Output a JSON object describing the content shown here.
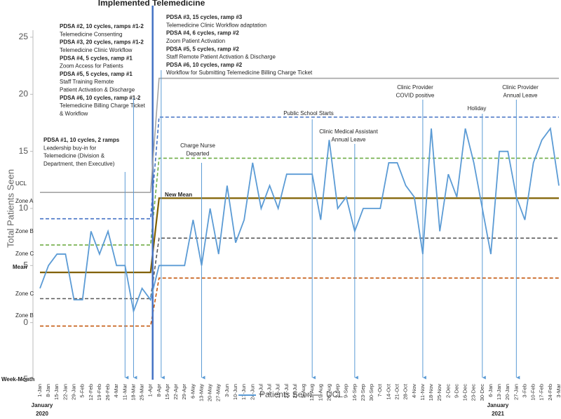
{
  "chart_data": {
    "type": "line",
    "title": "Implemented Telemedicine",
    "y_label": "Total Patients Seen",
    "x_label": "Week-Month",
    "year_labels": [
      [
        "January",
        "2020"
      ],
      [
        "January",
        "2021"
      ]
    ],
    "categories": [
      "1-Jan",
      "8-Jan",
      "15-Jan",
      "22-Jan",
      "29-Jan",
      "5-Feb",
      "12-Feb",
      "19-Feb",
      "26-Feb",
      "4-Mar",
      "11-Mar",
      "18-Mar",
      "25-Mar",
      "1-Apr",
      "8-Apr",
      "15-Apr",
      "22-Apr",
      "29-Apr",
      "6-May",
      "13-May",
      "20-May",
      "27-May",
      "3-Jun",
      "10-Jun",
      "17-Jun",
      "24-Jun",
      "1-Jul",
      "8-Jul",
      "15-Jul",
      "22-Jul",
      "29-Jul",
      "5-Aug",
      "12-Aug",
      "19-Aug",
      "26-Aug",
      "2-Sep",
      "9-Sep",
      "16-Sep",
      "23-Sep",
      "30-Sep",
      "7-Oct",
      "14-Oct",
      "21-Oct",
      "28-Oct",
      "4-Nov",
      "11-Nov",
      "18-Nov",
      "25-Nov",
      "2-Dec",
      "9-Dec",
      "16-Dec",
      "23-Dec",
      "30-Dec",
      "6-Jan",
      "13-Jan",
      "20-Jan",
      "27-Jan",
      "3-Feb",
      "10-Feb",
      "17-Feb",
      "24-Feb",
      "3-Mar"
    ],
    "series": [
      {
        "name": "Patients Seen",
        "color": "#5b9bd5",
        "values": [
          3,
          5,
          6,
          6,
          2,
          2,
          8,
          6,
          8,
          5,
          5,
          1,
          3,
          2,
          5,
          5,
          5,
          5,
          9,
          5,
          10,
          6,
          12,
          7,
          9,
          14,
          10,
          12,
          10,
          13,
          13,
          13,
          13,
          9,
          16,
          10,
          11,
          8,
          10,
          10,
          10,
          14,
          14,
          12,
          11,
          6,
          17,
          8,
          13,
          11,
          17,
          14,
          10,
          6,
          15,
          15,
          11,
          9,
          14,
          16,
          17,
          12
        ]
      },
      {
        "name": "UCL",
        "color": "#a5a5a5",
        "values": [
          11.4,
          11.4,
          11.4,
          11.4,
          11.4,
          11.4,
          11.4,
          11.4,
          11.4,
          11.4,
          11.4,
          11.4,
          11.4,
          11.4,
          21.4,
          21.4,
          21.4,
          21.4,
          21.4,
          21.4,
          21.4,
          21.4,
          21.4,
          21.4,
          21.4,
          21.4,
          21.4,
          21.4,
          21.4,
          21.4,
          21.4,
          21.4,
          21.4,
          21.4,
          21.4,
          21.4,
          21.4,
          21.4,
          21.4,
          21.4,
          21.4,
          21.4,
          21.4,
          21.4,
          21.4,
          21.4,
          21.4,
          21.4,
          21.4,
          21.4,
          21.4,
          21.4,
          21.4,
          21.4,
          21.4,
          21.4,
          21.4,
          21.4,
          21.4,
          21.4,
          21.4,
          21.4
        ]
      }
    ],
    "control_lines": [
      {
        "color": "#4472c4",
        "dashed": true,
        "values": [
          9.1,
          9.1,
          9.1,
          9.1,
          9.1,
          9.1,
          9.1,
          9.1,
          9.1,
          9.1,
          9.1,
          9.1,
          9.1,
          9.1,
          18,
          18,
          18,
          18,
          18,
          18,
          18,
          18,
          18,
          18,
          18,
          18,
          18,
          18,
          18,
          18,
          18,
          18,
          18,
          18,
          18,
          18,
          18,
          18,
          18,
          18,
          18,
          18,
          18,
          18,
          18,
          18,
          18,
          18,
          18,
          18,
          18,
          18,
          18,
          18,
          18,
          18,
          18,
          18,
          18,
          18,
          18,
          18
        ]
      },
      {
        "color": "#70ad47",
        "dashed": true,
        "values": [
          6.8,
          6.8,
          6.8,
          6.8,
          6.8,
          6.8,
          6.8,
          6.8,
          6.8,
          6.8,
          6.8,
          6.8,
          6.8,
          6.8,
          14.4,
          14.4,
          14.4,
          14.4,
          14.4,
          14.4,
          14.4,
          14.4,
          14.4,
          14.4,
          14.4,
          14.4,
          14.4,
          14.4,
          14.4,
          14.4,
          14.4,
          14.4,
          14.4,
          14.4,
          14.4,
          14.4,
          14.4,
          14.4,
          14.4,
          14.4,
          14.4,
          14.4,
          14.4,
          14.4,
          14.4,
          14.4,
          14.4,
          14.4,
          14.4,
          14.4,
          14.4,
          14.4,
          14.4,
          14.4,
          14.4,
          14.4,
          14.4,
          14.4,
          14.4,
          14.4,
          14.4,
          14.4
        ]
      },
      {
        "color": "#806000",
        "dashed": false,
        "values": [
          4.4,
          4.4,
          4.4,
          4.4,
          4.4,
          4.4,
          4.4,
          4.4,
          4.4,
          4.4,
          4.4,
          4.4,
          4.4,
          4.4,
          10.9,
          10.9,
          10.9,
          10.9,
          10.9,
          10.9,
          10.9,
          10.9,
          10.9,
          10.9,
          10.9,
          10.9,
          10.9,
          10.9,
          10.9,
          10.9,
          10.9,
          10.9,
          10.9,
          10.9,
          10.9,
          10.9,
          10.9,
          10.9,
          10.9,
          10.9,
          10.9,
          10.9,
          10.9,
          10.9,
          10.9,
          10.9,
          10.9,
          10.9,
          10.9,
          10.9,
          10.9,
          10.9,
          10.9,
          10.9,
          10.9,
          10.9,
          10.9,
          10.9,
          10.9,
          10.9,
          10.9,
          10.9
        ]
      },
      {
        "color": "#595959",
        "dashed": true,
        "values": [
          2.1,
          2.1,
          2.1,
          2.1,
          2.1,
          2.1,
          2.1,
          2.1,
          2.1,
          2.1,
          2.1,
          2.1,
          2.1,
          2.1,
          7.4,
          7.4,
          7.4,
          7.4,
          7.4,
          7.4,
          7.4,
          7.4,
          7.4,
          7.4,
          7.4,
          7.4,
          7.4,
          7.4,
          7.4,
          7.4,
          7.4,
          7.4,
          7.4,
          7.4,
          7.4,
          7.4,
          7.4,
          7.4,
          7.4,
          7.4,
          7.4,
          7.4,
          7.4,
          7.4,
          7.4,
          7.4,
          7.4,
          7.4,
          7.4,
          7.4,
          7.4,
          7.4,
          7.4,
          7.4,
          7.4,
          7.4,
          7.4,
          7.4,
          7.4,
          7.4,
          7.4,
          7.4
        ]
      },
      {
        "color": "#c55a11",
        "dashed": true,
        "values": [
          -0.3,
          -0.3,
          -0.3,
          -0.3,
          -0.3,
          -0.3,
          -0.3,
          -0.3,
          -0.3,
          -0.3,
          -0.3,
          -0.3,
          -0.3,
          -0.3,
          3.9,
          3.9,
          3.9,
          3.9,
          3.9,
          3.9,
          3.9,
          3.9,
          3.9,
          3.9,
          3.9,
          3.9,
          3.9,
          3.9,
          3.9,
          3.9,
          3.9,
          3.9,
          3.9,
          3.9,
          3.9,
          3.9,
          3.9,
          3.9,
          3.9,
          3.9,
          3.9,
          3.9,
          3.9,
          3.9,
          3.9,
          3.9,
          3.9,
          3.9,
          3.9,
          3.9,
          3.9,
          3.9,
          3.9,
          3.9,
          3.9,
          3.9,
          3.9,
          3.9,
          3.9,
          3.9,
          3.9,
          3.9
        ]
      }
    ],
    "zone_labels": [
      "UCL",
      "Zone A",
      "Zone B",
      "Zone C",
      "Mean",
      "Zone C",
      "Zone B",
      "New Mean"
    ],
    "annotations": [
      {
        "lines": [
          {
            "text": "PDSA #2, 10 cycles, ramps #1-2",
            "bold": true
          },
          {
            "text": "Telemedicine Consenting"
          },
          {
            "text": "PDSA #3, 20 cycles, ramps #1-2",
            "bold": true
          },
          {
            "text": "Telemedicine Clinic Workflow"
          },
          {
            "text": "PDSA #4, 5 cycles, ramp #1",
            "bold": true
          },
          {
            "text": "Zoom Access for Patients"
          },
          {
            "text": "PDSA #5, 5 cycles, ramp #1",
            "bold": true
          },
          {
            "text": "Staff Training Remote"
          },
          {
            "text": "Patient Activation & Discharge"
          },
          {
            "text": "PDSA #6, 10 cycles, ramp #1-2",
            "bold": true
          },
          {
            "text": "Telemedicine Billing Charge Ticket"
          },
          {
            "text": "& Workflow"
          }
        ]
      },
      {
        "lines": [
          {
            "text": "PDSA #3, 15 cycles, ramp #3",
            "bold": true
          },
          {
            "text": "Telemedicine Clinic Workflow adaptation"
          },
          {
            "text": "PDSA #4, 6 cycles, ramp #2",
            "bold": true
          },
          {
            "text": "Zoom Patient Activation"
          },
          {
            "text": "PDSA #5, 5 cycles, ramp #2",
            "bold": true
          },
          {
            "text": "Staff Remote Patient Activation & Discharge"
          },
          {
            "text": "PDSA #6, 10 cycles, ramp #2",
            "bold": true
          },
          {
            "text": "Workflow for Submitting Telemedicine Billing Charge Ticket"
          }
        ]
      },
      {
        "lines": [
          {
            "text": "PDSA #1, 10 cycles, 2 ramps",
            "bold": true
          },
          {
            "text": "Leadership buy-in for"
          },
          {
            "text": "Telemedicine (Division &"
          },
          {
            "text": "Department, then Executive)"
          }
        ]
      },
      {
        "lines": [
          {
            "text": "Charge Nurse"
          },
          {
            "text": "Departed"
          }
        ]
      },
      {
        "lines": [
          {
            "text": "Public School Starts"
          }
        ]
      },
      {
        "lines": [
          {
            "text": "Clinic Medical Assistant"
          },
          {
            "text": "Annual Leave"
          }
        ]
      },
      {
        "lines": [
          {
            "text": "Clinic Provider"
          },
          {
            "text": "COVID positive"
          }
        ]
      },
      {
        "lines": [
          {
            "text": "Holiday"
          }
        ]
      },
      {
        "lines": [
          {
            "text": "Clinic Provider"
          },
          {
            "text": "Annual Leave"
          }
        ]
      }
    ],
    "ylim": [
      -5,
      27
    ],
    "yticks": [
      -5,
      0,
      5,
      10,
      15,
      20,
      25
    ],
    "legend": "bottom"
  }
}
